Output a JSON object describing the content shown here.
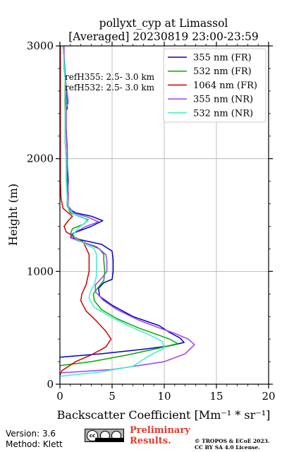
{
  "chart_data": {
    "type": "line",
    "title": [
      "pollyxt_cyp at Limassol",
      "[Averaged] 20230819 23:00-23:59"
    ],
    "xlabel": "Backscatter Coefficient [Mm⁻¹ * sr⁻¹]",
    "ylabel": "Height (m)",
    "xlim": [
      0,
      20
    ],
    "ylim": [
      0,
      3000
    ],
    "xticks": [
      0,
      5,
      10,
      15,
      20
    ],
    "yticks": [
      0,
      1000,
      2000,
      3000
    ],
    "grid": true,
    "legend_position": "top-right",
    "annotations": [
      "refH355:  2.5- 3.0 km",
      "refH532:  2.5- 3.0 km"
    ],
    "series": [
      {
        "name": "355 nm (FR)",
        "color": "#0000cc",
        "points": [
          [
            0.0,
            240
          ],
          [
            4.0,
            270
          ],
          [
            8.0,
            310
          ],
          [
            10.5,
            340
          ],
          [
            11.9,
            370
          ],
          [
            11.5,
            410
          ],
          [
            10.5,
            460
          ],
          [
            9.5,
            520
          ],
          [
            7.0,
            600
          ],
          [
            5.0,
            700
          ],
          [
            3.8,
            780
          ],
          [
            3.7,
            850
          ],
          [
            4.2,
            900
          ],
          [
            5.0,
            930
          ],
          [
            5.1,
            1000
          ],
          [
            5.1,
            1100
          ],
          [
            5.0,
            1180
          ],
          [
            4.0,
            1240
          ],
          [
            2.0,
            1280
          ],
          [
            1.0,
            1300
          ],
          [
            1.3,
            1340
          ],
          [
            3.0,
            1400
          ],
          [
            4.1,
            1450
          ],
          [
            3.0,
            1490
          ],
          [
            1.5,
            1520
          ],
          [
            0.8,
            1560
          ],
          [
            0.7,
            1650
          ],
          [
            0.8,
            1800
          ],
          [
            0.7,
            1950
          ],
          [
            0.7,
            2100
          ],
          [
            0.6,
            2250
          ],
          [
            0.5,
            2400
          ],
          [
            0.7,
            2450
          ],
          [
            0.6,
            2600
          ],
          [
            0.5,
            2750
          ],
          [
            0.4,
            2900
          ],
          [
            0.3,
            3000
          ]
        ]
      },
      {
        "name": "532 nm (FR)",
        "color": "#00aa00",
        "points": [
          [
            0.0,
            165
          ],
          [
            3.0,
            200
          ],
          [
            6.5,
            260
          ],
          [
            9.5,
            320
          ],
          [
            11.3,
            360
          ],
          [
            10.5,
            400
          ],
          [
            9.0,
            450
          ],
          [
            7.5,
            500
          ],
          [
            5.5,
            580
          ],
          [
            4.0,
            660
          ],
          [
            3.3,
            740
          ],
          [
            3.2,
            800
          ],
          [
            3.6,
            850
          ],
          [
            4.2,
            920
          ],
          [
            4.3,
            1000
          ],
          [
            4.2,
            1100
          ],
          [
            4.2,
            1150
          ],
          [
            3.8,
            1200
          ],
          [
            2.5,
            1250
          ],
          [
            1.4,
            1300
          ],
          [
            1.0,
            1330
          ],
          [
            1.2,
            1380
          ],
          [
            2.3,
            1420
          ],
          [
            2.7,
            1460
          ],
          [
            1.8,
            1490
          ],
          [
            1.0,
            1520
          ],
          [
            0.7,
            1580
          ],
          [
            0.7,
            1700
          ],
          [
            0.6,
            1850
          ],
          [
            0.6,
            2000
          ],
          [
            0.5,
            2150
          ],
          [
            0.5,
            2300
          ],
          [
            0.5,
            2500
          ],
          [
            0.5,
            2700
          ],
          [
            0.4,
            2850
          ],
          [
            0.3,
            3000
          ]
        ]
      },
      {
        "name": "1064 nm (FR)",
        "color": "#cc0000",
        "points": [
          [
            0.0,
            80
          ],
          [
            0.2,
            120
          ],
          [
            1.5,
            200
          ],
          [
            3.0,
            260
          ],
          [
            4.4,
            330
          ],
          [
            4.9,
            400
          ],
          [
            4.4,
            470
          ],
          [
            3.5,
            560
          ],
          [
            2.5,
            650
          ],
          [
            2.0,
            740
          ],
          [
            2.1,
            800
          ],
          [
            2.5,
            880
          ],
          [
            2.8,
            1000
          ],
          [
            2.8,
            1150
          ],
          [
            2.3,
            1250
          ],
          [
            1.5,
            1300
          ],
          [
            0.6,
            1350
          ],
          [
            0.4,
            1400
          ],
          [
            0.8,
            1450
          ],
          [
            1.2,
            1490
          ],
          [
            0.8,
            1520
          ],
          [
            0.3,
            1560
          ],
          [
            0.1,
            1650
          ],
          [
            0.05,
            1800
          ],
          [
            0.05,
            2000
          ],
          [
            0.05,
            2500
          ],
          [
            0.05,
            3000
          ]
        ]
      },
      {
        "name": "355 nm (NR)",
        "color": "#a040f0",
        "points": [
          [
            0.0,
            100
          ],
          [
            5.0,
            130
          ],
          [
            10.0,
            200
          ],
          [
            12.0,
            270
          ],
          [
            12.9,
            350
          ],
          [
            12.3,
            400
          ],
          [
            11.0,
            450
          ],
          [
            9.5,
            500
          ],
          [
            7.5,
            570
          ],
          [
            5.5,
            660
          ],
          [
            4.2,
            740
          ],
          [
            3.4,
            820
          ],
          [
            3.4,
            880
          ],
          [
            4.0,
            940
          ],
          [
            4.5,
            1000
          ],
          [
            4.5,
            1100
          ],
          [
            4.4,
            1150
          ],
          [
            3.5,
            1220
          ],
          [
            1.8,
            1270
          ],
          [
            1.0,
            1300
          ],
          [
            1.1,
            1330
          ],
          [
            2.5,
            1400
          ],
          [
            3.7,
            1440
          ],
          [
            2.7,
            1480
          ],
          [
            1.3,
            1520
          ],
          [
            0.8,
            1580
          ],
          [
            0.8,
            1700
          ],
          [
            0.7,
            1850
          ],
          [
            0.7,
            2050
          ],
          [
            0.6,
            2250
          ],
          [
            0.6,
            2450
          ],
          [
            0.8,
            2500
          ],
          [
            0.6,
            2650
          ],
          [
            0.4,
            2800
          ],
          [
            0.4,
            3000
          ]
        ]
      },
      {
        "name": "532 nm (NR)",
        "color": "#40f0c8",
        "points": [
          [
            0.0,
            70
          ],
          [
            4.0,
            110
          ],
          [
            7.0,
            160
          ],
          [
            8.5,
            250
          ],
          [
            10.0,
            320
          ],
          [
            9.8,
            380
          ],
          [
            8.5,
            440
          ],
          [
            7.0,
            500
          ],
          [
            5.0,
            590
          ],
          [
            3.3,
            680
          ],
          [
            2.8,
            760
          ],
          [
            2.9,
            820
          ],
          [
            3.3,
            880
          ],
          [
            3.5,
            960
          ],
          [
            3.5,
            1050
          ],
          [
            3.5,
            1150
          ],
          [
            3.3,
            1200
          ],
          [
            2.3,
            1250
          ],
          [
            1.5,
            1290
          ],
          [
            1.3,
            1330
          ],
          [
            1.8,
            1390
          ],
          [
            2.7,
            1450
          ],
          [
            2.2,
            1480
          ],
          [
            1.3,
            1510
          ],
          [
            0.8,
            1560
          ],
          [
            0.7,
            1650
          ],
          [
            0.6,
            1800
          ],
          [
            0.6,
            2000
          ],
          [
            0.5,
            2200
          ],
          [
            0.5,
            2400
          ],
          [
            0.6,
            2500
          ],
          [
            0.5,
            2700
          ],
          [
            0.4,
            2850
          ],
          [
            0.3,
            3000
          ]
        ]
      }
    ]
  },
  "footer": {
    "version": "Version: 3.6",
    "method": "Method: Klett",
    "preliminary_line1": "Preliminary",
    "preliminary_line2": "Results.",
    "copyright_line1": "© TROPOS & ECoE 2023.",
    "copyright_line2": "CC BY SA 4.0 License.",
    "license_badge_text": "cc"
  }
}
